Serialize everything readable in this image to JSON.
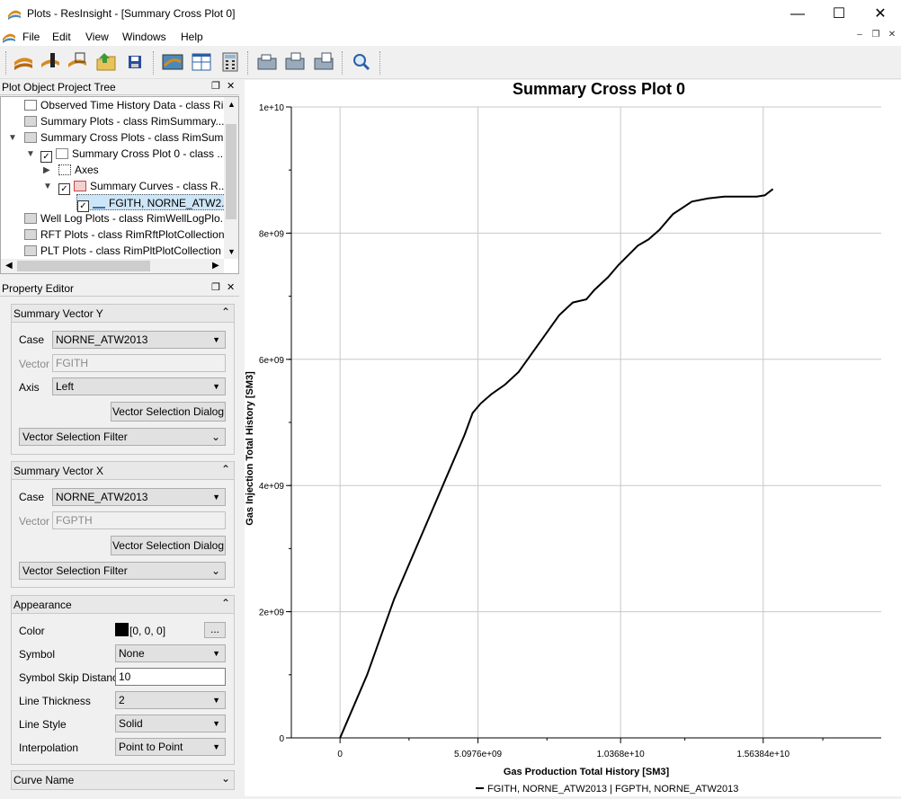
{
  "window": {
    "title": "Plots - ResInsight - [Summary Cross Plot 0]",
    "minimize": "—",
    "maximize": "☐",
    "close": "✕"
  },
  "menu": [
    "File",
    "Edit",
    "View",
    "Windows",
    "Help"
  ],
  "mdi": {
    "minimize": "–",
    "restore": "❐",
    "close": "✕"
  },
  "tree": {
    "title": "Plot Object Project Tree",
    "items": [
      "Observed Time History Data - class Ri...",
      "Summary Plots - class RimSummary...",
      "Summary Cross Plots - class RimSum...",
      "Summary Cross Plot 0 - class ...",
      "Axes",
      "Summary Curves - class R...",
      "FGITH, NORNE_ATW2...",
      "Well Log Plots - class RimWellLogPlo...",
      "RFT Plots - class RimRftPlotCollection",
      "PLT Plots - class RimPltPlotCollection"
    ]
  },
  "props": {
    "title": "Property Editor",
    "vecY": {
      "header": "Summary Vector Y",
      "case_label": "Case",
      "case": "NORNE_ATW2013",
      "vector_label": "Vector",
      "vector": "FGITH",
      "axis_label": "Axis",
      "axis": "Left",
      "dialog": "Vector Selection Dialog",
      "filter": "Vector Selection Filter"
    },
    "vecX": {
      "header": "Summary Vector X",
      "case_label": "Case",
      "case": "NORNE_ATW2013",
      "vector_label": "Vector",
      "vector": "FGPTH",
      "dialog": "Vector Selection Dialog",
      "filter": "Vector Selection Filter"
    },
    "appearance": {
      "header": "Appearance",
      "color_label": "Color",
      "color_value": "[0, 0, 0]",
      "color_hex": "#000000",
      "ellipsis": "...",
      "symbol_label": "Symbol",
      "symbol": "None",
      "skip_label": "Symbol Skip Distance",
      "skip": "10",
      "thick_label": "Line Thickness",
      "thick": "2",
      "style_label": "Line Style",
      "style": "Solid",
      "interp_label": "Interpolation",
      "interp": "Point to Point"
    },
    "curvename": {
      "header": "Curve Name"
    }
  },
  "chart_data": {
    "type": "line",
    "title": "Summary Cross Plot 0",
    "xlabel": "Gas Production Total History [SM3]",
    "ylabel": "Gas Injection Total History [SM3]",
    "xlim": [
      -1800000000.0,
      20000000000.0
    ],
    "ylim": [
      0,
      10000000000.0
    ],
    "x_ticks": [
      0,
      5097600000.0,
      10368000000.0,
      15638400000.0
    ],
    "x_tick_labels": [
      "0",
      "5.0976e+09",
      "1.0368e+10",
      "1.56384e+10"
    ],
    "y_ticks": [
      0,
      2000000000.0,
      4000000000.0,
      6000000000.0,
      8000000000.0,
      10000000000.0
    ],
    "y_tick_labels": [
      "0",
      "2e+09",
      "4e+09",
      "6e+09",
      "8e+09",
      "1e+10"
    ],
    "grid": true,
    "legend": "bottom",
    "series": [
      {
        "name": "FGITH, NORNE_ATW2013 | FGPTH, NORNE_ATW2013",
        "color": "#000000",
        "x": [
          0,
          1000000000.0,
          2000000000.0,
          3000000000.0,
          4000000000.0,
          4600000000.0,
          4900000000.0,
          5200000000.0,
          5600000000.0,
          6100000000.0,
          6600000000.0,
          7100000000.0,
          7600000000.0,
          8100000000.0,
          8600000000.0,
          9100000000.0,
          9400000000.0,
          9900000000.0,
          10300000000.0,
          11000000000.0,
          11400000000.0,
          11800000000.0,
          12300000000.0,
          13000000000.0,
          13600000000.0,
          14200000000.0,
          14600000000.0,
          15000000000.0,
          15400000000.0,
          15700000000.0,
          16000000000.0
        ],
        "y": [
          0,
          1000000000.0,
          2200000000.0,
          3200000000.0,
          4200000000.0,
          4800000000.0,
          5150000000.0,
          5300000000.0,
          5450000000.0,
          5600000000.0,
          5800000000.0,
          6100000000.0,
          6400000000.0,
          6700000000.0,
          6900000000.0,
          6950000000.0,
          7100000000.0,
          7300000000.0,
          7500000000.0,
          7800000000.0,
          7900000000.0,
          8050000000.0,
          8300000000.0,
          8500000000.0,
          8550000000.0,
          8580000000.0,
          8580000000.0,
          8580000000.0,
          8580000000.0,
          8600000000.0,
          8700000000.0
        ]
      }
    ]
  }
}
